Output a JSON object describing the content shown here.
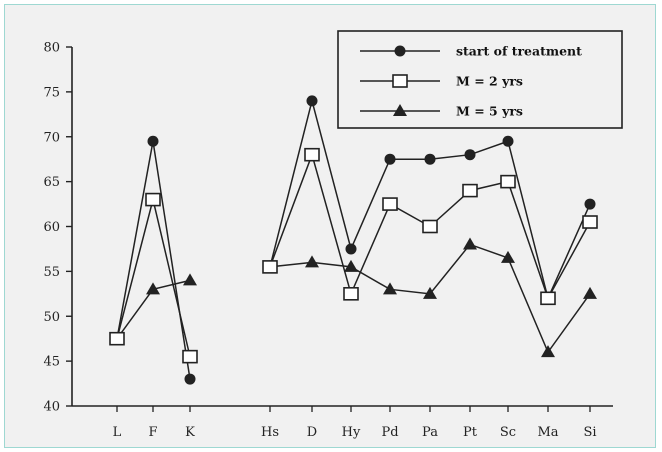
{
  "chart_data": {
    "type": "line",
    "categories": [
      "L",
      "F",
      "K",
      "Hs",
      "D",
      "Hy",
      "Pd",
      "Pa",
      "Pt",
      "Sc",
      "Ma",
      "Si"
    ],
    "gap_after_index": 2,
    "ylim": [
      40,
      80
    ],
    "yticks": [
      40,
      45,
      50,
      55,
      60,
      65,
      70,
      75,
      80
    ],
    "title": "",
    "xlabel": "",
    "ylabel": "",
    "grid": false,
    "legend_position": "top-right",
    "series": [
      {
        "name": "start of treatment",
        "marker": "filled-circle",
        "values": [
          47.5,
          69.5,
          43,
          55.5,
          74,
          57.5,
          67.5,
          67.5,
          68,
          69.5,
          52,
          62.5
        ]
      },
      {
        "name": "M = 2 yrs",
        "marker": "open-square",
        "values": [
          47.5,
          63,
          45.5,
          55.5,
          68,
          52.5,
          62.5,
          60,
          64,
          65,
          52,
          60.5
        ]
      },
      {
        "name": "M = 5 yrs",
        "marker": "filled-triangle",
        "values": [
          47.5,
          53,
          54,
          55.5,
          56,
          55.5,
          53,
          52.5,
          58,
          56.5,
          46,
          52.5
        ]
      }
    ],
    "colors": {
      "line": "#222222",
      "background": "#f1f1f1",
      "frame": "#9ed8d2"
    }
  }
}
